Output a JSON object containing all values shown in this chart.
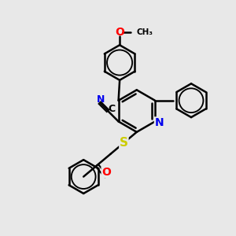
{
  "background_color": "#e8e8e8",
  "bond_color": "#000000",
  "bond_width": 1.8,
  "atom_colors": {
    "N": "#0000ee",
    "O": "#ff0000",
    "S": "#cccc00",
    "C": "#000000"
  },
  "font_size": 9,
  "fig_size": [
    3.0,
    3.0
  ],
  "dpi": 100
}
